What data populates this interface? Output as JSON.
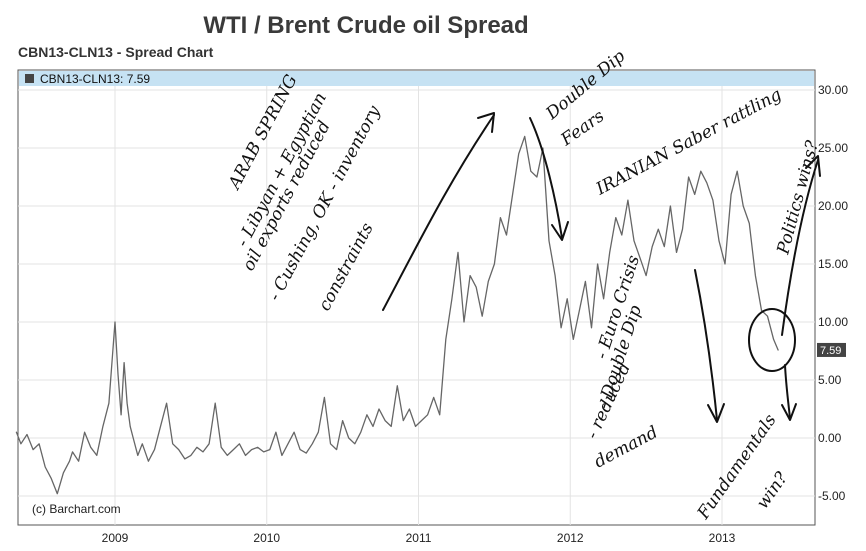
{
  "chart_data": {
    "type": "line",
    "title": "WTI / Brent Crude oil Spread",
    "subtitle": "CBN13-CLN13 - Spread Chart",
    "legend_label": "CBN13-CLN13: 7.59",
    "last_value_label": "7.59",
    "credit": "(c) Barchart.com",
    "x_ticks": [
      "2009",
      "2010",
      "2011",
      "2012",
      "2013"
    ],
    "y_ticks": [
      "30.00",
      "25.00",
      "20.00",
      "15.00",
      "10.00",
      "5.00",
      "0.00",
      "-5.00"
    ],
    "ylim": [
      -7,
      31
    ],
    "xlim": [
      2008.35,
      2013.95
    ],
    "grid": true,
    "legend_position": "top-left",
    "line_color": "#666666",
    "highlight_color": "#c6e2f3",
    "series": [
      {
        "x": [
          2008.35,
          2008.38,
          2008.42,
          2008.46,
          2008.5,
          2008.54,
          2008.58,
          2008.62,
          2008.66,
          2008.7,
          2008.72,
          2008.76,
          2008.8,
          2008.84,
          2008.88,
          2008.92,
          2008.96,
          2009.0,
          2009.02,
          2009.04,
          2009.06,
          2009.08,
          2009.1,
          2009.12,
          2009.15,
          2009.18,
          2009.22,
          2009.26,
          2009.3,
          2009.34,
          2009.38,
          2009.42,
          2009.46,
          2009.5,
          2009.54,
          2009.58,
          2009.62,
          2009.66,
          2009.7,
          2009.74,
          2009.78,
          2009.82,
          2009.86,
          2009.9,
          2009.94,
          2009.98,
          2010.02,
          2010.06,
          2010.1,
          2010.14,
          2010.18,
          2010.22,
          2010.26,
          2010.3,
          2010.34,
          2010.38,
          2010.42,
          2010.46,
          2010.5,
          2010.54,
          2010.58,
          2010.62,
          2010.66,
          2010.7,
          2010.74,
          2010.78,
          2010.82,
          2010.86,
          2010.9,
          2010.94,
          2010.98,
          2011.02,
          2011.06,
          2011.1,
          2011.14,
          2011.18,
          2011.22,
          2011.26,
          2011.3,
          2011.34,
          2011.38,
          2011.42,
          2011.46,
          2011.5,
          2011.54,
          2011.58,
          2011.62,
          2011.66,
          2011.7,
          2011.74,
          2011.78,
          2011.82,
          2011.86,
          2011.9,
          2011.94,
          2011.98,
          2012.02,
          2012.06,
          2012.1,
          2012.14,
          2012.18,
          2012.22,
          2012.26,
          2012.3,
          2012.34,
          2012.38,
          2012.42,
          2012.46,
          2012.5,
          2012.54,
          2012.58,
          2012.62,
          2012.66,
          2012.7,
          2012.74,
          2012.78,
          2012.82,
          2012.86,
          2012.9,
          2012.94,
          2012.98,
          2013.02,
          2013.06,
          2013.1,
          2013.14,
          2013.18,
          2013.22,
          2013.26,
          2013.3,
          2013.34,
          2013.37
        ],
        "values": [
          0.5,
          -0.5,
          0.3,
          -1.0,
          -0.5,
          -2.5,
          -3.5,
          -4.8,
          -3.0,
          -2.0,
          -1.2,
          -2.0,
          0.5,
          -0.8,
          -1.5,
          1.0,
          3.0,
          10.0,
          5.5,
          2.0,
          6.5,
          3.0,
          1.0,
          0.0,
          -1.5,
          -0.5,
          -2.0,
          -1.0,
          1.0,
          3.0,
          -0.5,
          -1.0,
          -1.8,
          -1.5,
          -0.8,
          -1.2,
          -0.5,
          3.0,
          -0.8,
          -1.5,
          -1.0,
          -0.5,
          -1.5,
          -1.0,
          -0.8,
          -1.2,
          -1.0,
          0.5,
          -1.5,
          -0.5,
          0.5,
          -1.0,
          -1.3,
          -0.5,
          0.5,
          3.5,
          -0.5,
          -1.0,
          1.5,
          0.0,
          -0.5,
          0.5,
          2.0,
          1.0,
          2.5,
          1.5,
          1.0,
          4.5,
          1.5,
          2.5,
          1.0,
          1.5,
          2.0,
          3.5,
          2.0,
          8.5,
          12.0,
          16.0,
          10.0,
          14.0,
          13.0,
          10.5,
          13.5,
          15.0,
          19.0,
          17.5,
          21.0,
          24.5,
          26.0,
          23.0,
          22.5,
          25.0,
          17.0,
          14.0,
          9.5,
          12.0,
          8.5,
          11.0,
          13.5,
          9.5,
          15.0,
          12.0,
          16.0,
          19.0,
          17.5,
          20.5,
          17.0,
          15.5,
          14.0,
          16.5,
          18.0,
          16.5,
          20.0,
          16.0,
          18.0,
          22.5,
          21.0,
          23.0,
          22.0,
          20.5,
          17.0,
          15.0,
          21.0,
          23.0,
          20.0,
          18.5,
          14.0,
          11.0,
          10.5,
          8.5,
          7.59
        ]
      }
    ]
  },
  "annotations": {
    "arab_spring": "ARAB SPRING",
    "libyan": "- Libyan + Egyptian",
    "oil_exports": "oil exports reduced",
    "cushing": "- Cushing, OK - inventory",
    "constraints": "constraints",
    "double_dip": "Double Dip",
    "fears": "Fears",
    "iranian": "IRANIAN Saber rattling",
    "politics": "Politics wins?",
    "euro": "- Euro Crisis",
    "double_dip2": "- Double Dip",
    "reduced": "- reduced",
    "demand": "demand",
    "fundamentals": "Fundamentals",
    "win": "win?"
  }
}
